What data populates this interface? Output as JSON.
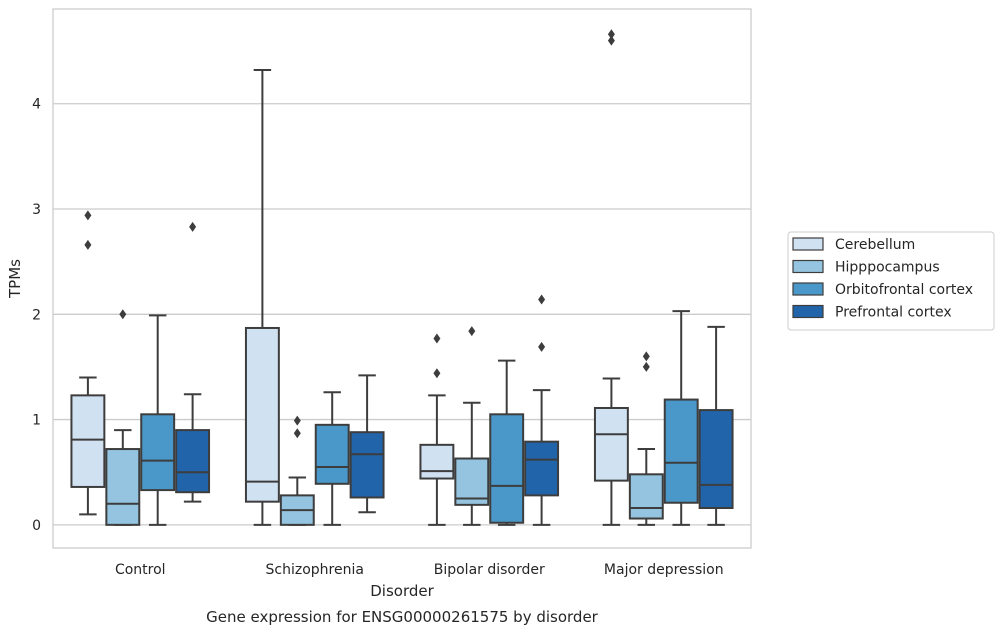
{
  "caption": "Gene expression for ENSG00000261575 by disorder",
  "chart_data": {
    "type": "box",
    "xlabel": "Disorder",
    "ylabel": "TPMs",
    "ylim": [
      -0.22,
      4.9
    ],
    "yticks": [
      0,
      1,
      2,
      3,
      4
    ],
    "grid": "horizontal",
    "legend_position": "right",
    "categories": [
      "Control",
      "Schizophrenia",
      "Bipolar disorder",
      "Major depression"
    ],
    "series": [
      {
        "name": "Cerebellum",
        "color": "#d0e1f2",
        "boxes": [
          {
            "whisker_low": 0.1,
            "q1": 0.36,
            "median": 0.81,
            "q3": 1.23,
            "whisker_high": 1.4,
            "outliers": [
              2.66,
              2.94
            ]
          },
          {
            "whisker_low": 0.0,
            "q1": 0.22,
            "median": 0.41,
            "q3": 1.87,
            "whisker_high": 4.32,
            "outliers": []
          },
          {
            "whisker_low": 0.0,
            "q1": 0.44,
            "median": 0.51,
            "q3": 0.76,
            "whisker_high": 1.23,
            "outliers": [
              1.44,
              1.77
            ]
          },
          {
            "whisker_low": 0.0,
            "q1": 0.42,
            "median": 0.86,
            "q3": 1.11,
            "whisker_high": 1.39,
            "outliers": [
              4.6,
              4.66
            ]
          }
        ]
      },
      {
        "name": "Hipppocampus",
        "color": "#94c4df",
        "boxes": [
          {
            "whisker_low": 0.0,
            "q1": 0.0,
            "median": 0.2,
            "q3": 0.72,
            "whisker_high": 0.9,
            "outliers": [
              2.0
            ]
          },
          {
            "whisker_low": 0.0,
            "q1": 0.0,
            "median": 0.14,
            "q3": 0.28,
            "whisker_high": 0.45,
            "outliers": [
              0.87,
              0.99
            ]
          },
          {
            "whisker_low": 0.0,
            "q1": 0.19,
            "median": 0.25,
            "q3": 0.63,
            "whisker_high": 1.16,
            "outliers": [
              1.84
            ]
          },
          {
            "whisker_low": 0.0,
            "q1": 0.06,
            "median": 0.16,
            "q3": 0.48,
            "whisker_high": 0.72,
            "outliers": [
              1.5,
              1.6
            ]
          }
        ]
      },
      {
        "name": "Orbitofrontal cortex",
        "color": "#4a98c9",
        "boxes": [
          {
            "whisker_low": 0.0,
            "q1": 0.33,
            "median": 0.61,
            "q3": 1.05,
            "whisker_high": 1.99,
            "outliers": []
          },
          {
            "whisker_low": 0.0,
            "q1": 0.39,
            "median": 0.55,
            "q3": 0.95,
            "whisker_high": 1.26,
            "outliers": []
          },
          {
            "whisker_low": 0.0,
            "q1": 0.02,
            "median": 0.37,
            "q3": 1.05,
            "whisker_high": 1.56,
            "outliers": []
          },
          {
            "whisker_low": 0.0,
            "q1": 0.21,
            "median": 0.59,
            "q3": 1.19,
            "whisker_high": 2.03,
            "outliers": []
          }
        ]
      },
      {
        "name": "Prefrontal cortex",
        "color": "#2264aa",
        "boxes": [
          {
            "whisker_low": 0.22,
            "q1": 0.31,
            "median": 0.5,
            "q3": 0.9,
            "whisker_high": 1.24,
            "outliers": [
              2.83
            ]
          },
          {
            "whisker_low": 0.12,
            "q1": 0.26,
            "median": 0.67,
            "q3": 0.88,
            "whisker_high": 1.42,
            "outliers": []
          },
          {
            "whisker_low": 0.0,
            "q1": 0.28,
            "median": 0.62,
            "q3": 0.79,
            "whisker_high": 1.28,
            "outliers": [
              1.69,
              2.14
            ]
          },
          {
            "whisker_low": 0.0,
            "q1": 0.16,
            "median": 0.38,
            "q3": 1.09,
            "whisker_high": 1.88,
            "outliers": []
          }
        ]
      }
    ]
  }
}
